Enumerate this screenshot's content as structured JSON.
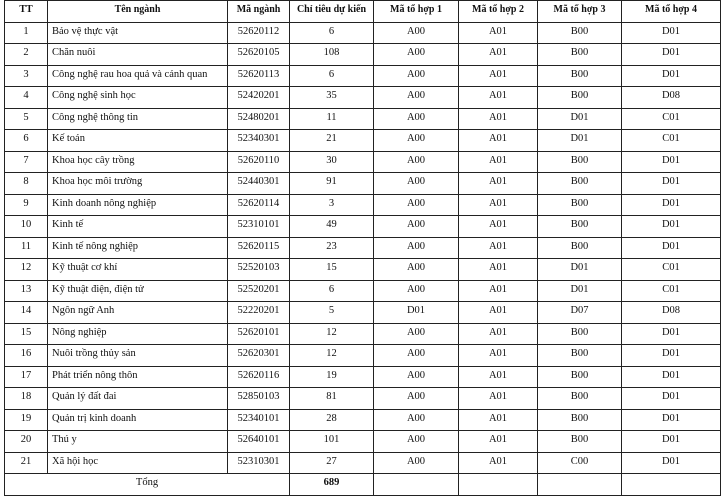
{
  "headers": [
    "TT",
    "Tên ngành",
    "Mã ngành",
    "Chỉ tiêu dự kiến",
    "Mã tổ hợp 1",
    "Mã tổ hợp  2",
    "Mã tổ hợp  3",
    "Mã tổ hợp  4"
  ],
  "rows": [
    [
      "1",
      "Bảo vệ thực vật",
      "52620112",
      "6",
      "A00",
      "A01",
      "B00",
      "D01"
    ],
    [
      "2",
      "Chăn nuôi",
      "52620105",
      "108",
      "A00",
      "A01",
      "B00",
      "D01"
    ],
    [
      "3",
      "Công nghệ rau hoa quả và cảnh quan",
      "52620113",
      "6",
      "A00",
      "A01",
      "B00",
      "D01"
    ],
    [
      "4",
      "Công nghệ sinh học",
      "52420201",
      "35",
      "A00",
      "A01",
      "B00",
      "D08"
    ],
    [
      "5",
      "Công nghệ thông tin",
      "52480201",
      "11",
      "A00",
      "A01",
      "D01",
      "C01"
    ],
    [
      "6",
      "Kế toán",
      "52340301",
      "21",
      "A00",
      "A01",
      "D01",
      "C01"
    ],
    [
      "7",
      "Khoa học cây trồng",
      "52620110",
      "30",
      "A00",
      "A01",
      "B00",
      "D01"
    ],
    [
      "8",
      "Khoa học môi trường",
      "52440301",
      "91",
      "A00",
      "A01",
      "B00",
      "D01"
    ],
    [
      "9",
      "Kinh doanh nông nghiệp",
      "52620114",
      "3",
      "A00",
      "A01",
      "B00",
      "D01"
    ],
    [
      "10",
      "Kinh tế",
      "52310101",
      "49",
      "A00",
      "A01",
      "B00",
      "D01"
    ],
    [
      "11",
      "Kinh tế nông nghiệp",
      "52620115",
      "23",
      "A00",
      "A01",
      "B00",
      "D01"
    ],
    [
      "12",
      "Kỹ thuật cơ khí",
      "52520103",
      "15",
      "A00",
      "A01",
      "D01",
      "C01"
    ],
    [
      "13",
      "Kỹ thuật điện, điện tử",
      "52520201",
      "6",
      "A00",
      "A01",
      "D01",
      "C01"
    ],
    [
      "14",
      "Ngôn ngữ Anh",
      "52220201",
      "5",
      "D01",
      "A01",
      "D07",
      "D08"
    ],
    [
      "15",
      "Nông nghiệp",
      "52620101",
      "12",
      "A00",
      "A01",
      "B00",
      "D01"
    ],
    [
      "16",
      "Nuôi trồng thủy sản",
      "52620301",
      "12",
      "A00",
      "A01",
      "B00",
      "D01"
    ],
    [
      "17",
      "Phát triển nông thôn",
      "52620116",
      "19",
      "A00",
      "A01",
      "B00",
      "D01"
    ],
    [
      "18",
      "Quản lý đất đai",
      "52850103",
      "81",
      "A00",
      "A01",
      "B00",
      "D01"
    ],
    [
      "19",
      "Quản trị kinh doanh",
      "52340101",
      "28",
      "A00",
      "A01",
      "B00",
      "D01"
    ],
    [
      "20",
      "Thú y",
      "52640101",
      "101",
      "A00",
      "A01",
      "B00",
      "D01"
    ],
    [
      "21",
      "Xã hội học",
      "52310301",
      "27",
      "A00",
      "A01",
      "C00",
      "D01"
    ]
  ],
  "total": {
    "label": "Tổng",
    "value": "689"
  }
}
